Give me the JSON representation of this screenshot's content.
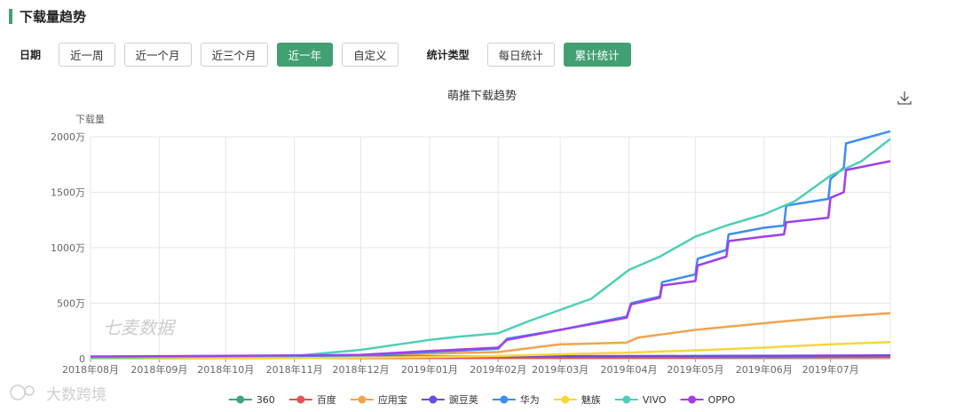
{
  "header": {
    "title": "下载量趋势"
  },
  "filters": {
    "date_label": "日期",
    "date_options": [
      "近一周",
      "近一个月",
      "近三个月",
      "近一年",
      "自定义"
    ],
    "date_active": 3,
    "type_label": "统计类型",
    "type_options": [
      "每日统计",
      "累计统计"
    ],
    "type_active": 1
  },
  "download_icon": "download-icon",
  "watermarks": {
    "chart": "七麦数据",
    "corner": "大数跨境"
  },
  "chart_data": {
    "type": "line",
    "title": "萌推下载趋势",
    "ylabel": "下载量",
    "y_unit": "万",
    "ylim": [
      0,
      2000
    ],
    "y_ticks": [
      0,
      500,
      1000,
      1500,
      2000
    ],
    "y_tick_labels": [
      "0",
      "500万",
      "1000万",
      "1500万",
      "2000万"
    ],
    "x_ticks": [
      "2018年08月",
      "2018年09月",
      "2018年10月",
      "2018年11月",
      "2018年12月",
      "2019年01月",
      "2019年02月",
      "2019年03月",
      "2019年04月",
      "2019年05月",
      "2019年06月",
      "2019年07月"
    ],
    "x_range": [
      "2018-08-01",
      "2019-07-28"
    ],
    "grid": true,
    "legend_position": "bottom",
    "series": [
      {
        "name": "360",
        "color": "#3ea57a",
        "points": [
          [
            "2018-08-01",
            5
          ],
          [
            "2018-11-01",
            7
          ],
          [
            "2019-02-01",
            10
          ],
          [
            "2019-05-01",
            15
          ],
          [
            "2019-07-28",
            20
          ]
        ]
      },
      {
        "name": "百度",
        "color": "#e05555",
        "points": [
          [
            "2018-08-01",
            4
          ],
          [
            "2018-11-01",
            6
          ],
          [
            "2019-02-01",
            8
          ],
          [
            "2019-05-01",
            12
          ],
          [
            "2019-07-28",
            16
          ]
        ]
      },
      {
        "name": "应用宝",
        "color": "#f0a450",
        "points": [
          [
            "2018-08-01",
            8
          ],
          [
            "2018-11-01",
            15
          ],
          [
            "2018-12-01",
            25
          ],
          [
            "2019-01-01",
            45
          ],
          [
            "2019-02-01",
            60
          ],
          [
            "2019-02-15",
            95
          ],
          [
            "2019-03-01",
            130
          ],
          [
            "2019-03-31",
            145
          ],
          [
            "2019-04-05",
            190
          ],
          [
            "2019-05-01",
            260
          ],
          [
            "2019-06-01",
            320
          ],
          [
            "2019-07-01",
            375
          ],
          [
            "2019-07-28",
            410
          ]
        ]
      },
      {
        "name": "豌豆荚",
        "color": "#6d4de0",
        "points": [
          [
            "2018-08-01",
            15
          ],
          [
            "2018-11-01",
            18
          ],
          [
            "2019-02-01",
            22
          ],
          [
            "2019-05-01",
            25
          ],
          [
            "2019-07-28",
            30
          ]
        ]
      },
      {
        "name": "华为",
        "color": "#3d8ef0",
        "points": [
          [
            "2018-08-01",
            10
          ],
          [
            "2018-11-01",
            15
          ],
          [
            "2018-12-01",
            25
          ],
          [
            "2019-01-01",
            60
          ],
          [
            "2019-02-01",
            90
          ],
          [
            "2019-02-05",
            180
          ],
          [
            "2019-03-01",
            260
          ],
          [
            "2019-03-31",
            380
          ],
          [
            "2019-04-02",
            500
          ],
          [
            "2019-04-15",
            560
          ],
          [
            "2019-04-16",
            690
          ],
          [
            "2019-05-01",
            760
          ],
          [
            "2019-05-02",
            900
          ],
          [
            "2019-05-15",
            980
          ],
          [
            "2019-05-16",
            1120
          ],
          [
            "2019-06-01",
            1180
          ],
          [
            "2019-06-10",
            1200
          ],
          [
            "2019-06-11",
            1380
          ],
          [
            "2019-06-30",
            1440
          ],
          [
            "2019-07-01",
            1620
          ],
          [
            "2019-07-07",
            1720
          ],
          [
            "2019-07-08",
            1940
          ],
          [
            "2019-07-28",
            2050
          ]
        ]
      },
      {
        "name": "魅族",
        "color": "#f5d73c",
        "points": [
          [
            "2018-08-01",
            2
          ],
          [
            "2018-11-01",
            5
          ],
          [
            "2019-01-01",
            15
          ],
          [
            "2019-02-01",
            25
          ],
          [
            "2019-03-01",
            40
          ],
          [
            "2019-04-01",
            55
          ],
          [
            "2019-05-01",
            75
          ],
          [
            "2019-06-01",
            100
          ],
          [
            "2019-07-01",
            130
          ],
          [
            "2019-07-28",
            150
          ]
        ]
      },
      {
        "name": "VIVO",
        "color": "#4ecfb5",
        "points": [
          [
            "2018-08-01",
            10
          ],
          [
            "2018-11-01",
            25
          ],
          [
            "2018-11-20",
            60
          ],
          [
            "2018-12-01",
            80
          ],
          [
            "2019-01-01",
            170
          ],
          [
            "2019-01-15",
            200
          ],
          [
            "2019-02-01",
            230
          ],
          [
            "2019-02-15",
            340
          ],
          [
            "2019-03-01",
            440
          ],
          [
            "2019-03-15",
            540
          ],
          [
            "2019-04-01",
            800
          ],
          [
            "2019-04-15",
            920
          ],
          [
            "2019-05-01",
            1100
          ],
          [
            "2019-05-15",
            1200
          ],
          [
            "2019-06-01",
            1300
          ],
          [
            "2019-06-15",
            1420
          ],
          [
            "2019-07-01",
            1650
          ],
          [
            "2019-07-15",
            1780
          ],
          [
            "2019-07-28",
            1980
          ]
        ]
      },
      {
        "name": "OPPO",
        "color": "#a040e8",
        "points": [
          [
            "2018-08-01",
            20
          ],
          [
            "2018-11-01",
            30
          ],
          [
            "2018-12-01",
            35
          ],
          [
            "2019-01-01",
            70
          ],
          [
            "2019-02-01",
            100
          ],
          [
            "2019-02-05",
            170
          ],
          [
            "2019-03-01",
            260
          ],
          [
            "2019-03-31",
            370
          ],
          [
            "2019-04-02",
            490
          ],
          [
            "2019-04-15",
            550
          ],
          [
            "2019-04-16",
            660
          ],
          [
            "2019-05-01",
            700
          ],
          [
            "2019-05-02",
            840
          ],
          [
            "2019-05-15",
            920
          ],
          [
            "2019-05-16",
            1060
          ],
          [
            "2019-06-01",
            1100
          ],
          [
            "2019-06-10",
            1120
          ],
          [
            "2019-06-11",
            1230
          ],
          [
            "2019-06-30",
            1270
          ],
          [
            "2019-07-01",
            1450
          ],
          [
            "2019-07-07",
            1500
          ],
          [
            "2019-07-08",
            1700
          ],
          [
            "2019-07-28",
            1780
          ]
        ]
      }
    ]
  }
}
